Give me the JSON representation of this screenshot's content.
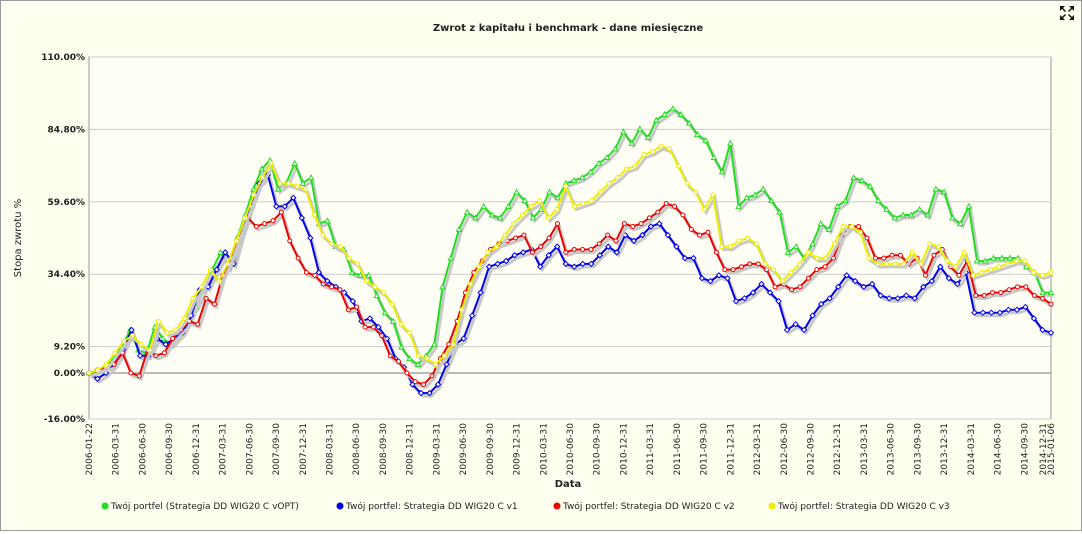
{
  "chart_data": {
    "type": "line",
    "title": "Zwrot z kapitału i benchmark - dane miesięczne",
    "xlabel": "Data",
    "ylabel": "Stopa zwrotu %",
    "y_ticks": [
      "110.00%",
      "84.80%",
      "59.60%",
      "34.40%",
      "9.20%",
      "0.00%",
      "-16.00%"
    ],
    "y_tick_values": [
      110,
      84.8,
      59.6,
      34.4,
      9.2,
      0,
      -16
    ],
    "ylim": [
      -16,
      110
    ],
    "x_ticks": [
      "2006-01-22",
      "2006-03-31",
      "2006-06-30",
      "2006-09-30",
      "2006-12-31",
      "2007-03-31",
      "2007-06-30",
      "2007-09-30",
      "2007-12-31",
      "2008-03-31",
      "2008-06-30",
      "2008-09-30",
      "2008-12-31",
      "2009-03-31",
      "2009-06-30",
      "2009-09-30",
      "2009-12-31",
      "2010-03-31",
      "2010-06-30",
      "2010-09-30",
      "2010-12-31",
      "2011-03-31",
      "2011-06-30",
      "2011-09-30",
      "2011-12-31",
      "2012-03-31",
      "2012-06-30",
      "2012-09-30",
      "2012-12-31",
      "2013-03-31",
      "2013-06-30",
      "2013-09-30",
      "2013-12-31",
      "2014-03-31",
      "2014-06-30",
      "2014-09-30",
      "2014-12-31",
      "2015-01-06"
    ],
    "grid": true,
    "legend_position": "bottom",
    "series": [
      {
        "name": "Twój portfel (Strategia DD WIG20 C vOPT)",
        "color": "#22dd22",
        "values": [
          0,
          1,
          2,
          5,
          9,
          15,
          8,
          7,
          16,
          12,
          10,
          13,
          20,
          23,
          29,
          36,
          42,
          37,
          47,
          55,
          64,
          71,
          74,
          64,
          66,
          73,
          66,
          68,
          52,
          53,
          44,
          43,
          35,
          34,
          34,
          27,
          21,
          18,
          9,
          5,
          3,
          6,
          10,
          30,
          40,
          50,
          56,
          54,
          58,
          55,
          54,
          58,
          63,
          60,
          54,
          57,
          63,
          61,
          66,
          67,
          68,
          70,
          73,
          75,
          78,
          84,
          80,
          85,
          82,
          88,
          90,
          92,
          90,
          87,
          83,
          81,
          75,
          70,
          80,
          58,
          61,
          62,
          64,
          60,
          56,
          42,
          44,
          40,
          45,
          52,
          50,
          58,
          60,
          68,
          67,
          65,
          60,
          57,
          54,
          55,
          55,
          57,
          55,
          64,
          63,
          54,
          52,
          58,
          39,
          39,
          40,
          40,
          40,
          40,
          37,
          35,
          28,
          28
        ]
      },
      {
        "name": "Twój portfel: Strategia DD WIG20 C v1",
        "color": "#0000ee",
        "values": [
          0,
          -2,
          0,
          3,
          8,
          15,
          6,
          6,
          12,
          10,
          12,
          14,
          20,
          29,
          30,
          36,
          42,
          38,
          49,
          58,
          66,
          69,
          58,
          58,
          61,
          54,
          47,
          35,
          32,
          30,
          28,
          25,
          18,
          19,
          16,
          12,
          5,
          2,
          -4,
          -7,
          -7,
          -4,
          3,
          10,
          12,
          20,
          28,
          37,
          38,
          39,
          41,
          42,
          43,
          37,
          41,
          44,
          38,
          37,
          38,
          38,
          41,
          44,
          42,
          48,
          46,
          48,
          51,
          52,
          48,
          44,
          40,
          40,
          33,
          32,
          34,
          33,
          25,
          26,
          28,
          31,
          28,
          25,
          15,
          17,
          15,
          20,
          24,
          26,
          30,
          34,
          32,
          30,
          31,
          27,
          26,
          26,
          27,
          26,
          30,
          32,
          37,
          33,
          31,
          35,
          21,
          21,
          21,
          21,
          22,
          22,
          23,
          19,
          15,
          14
        ]
      },
      {
        "name": "Twój portfel: Strategia DD WIG20 C v2",
        "color": "#ee0000",
        "values": [
          0,
          1,
          2,
          3,
          7,
          0,
          -1,
          8,
          6,
          7,
          12,
          15,
          18,
          17,
          26,
          24,
          34,
          40,
          47,
          54,
          51,
          52,
          53,
          56,
          46,
          40,
          35,
          34,
          31,
          30,
          29,
          22,
          23,
          16,
          16,
          13,
          6,
          4,
          0,
          -3,
          -4,
          -1,
          5,
          10,
          18,
          28,
          35,
          39,
          43,
          45,
          46,
          47,
          48,
          42,
          44,
          47,
          52,
          42,
          43,
          43,
          43,
          45,
          48,
          46,
          52,
          51,
          52,
          54,
          56,
          59,
          58,
          55,
          50,
          48,
          49,
          42,
          36,
          36,
          37,
          38,
          38,
          36,
          30,
          31,
          29,
          30,
          33,
          36,
          37,
          40,
          48,
          51,
          51,
          47,
          40,
          40,
          41,
          41,
          38,
          40,
          34,
          41,
          43,
          37,
          34,
          39,
          27,
          27,
          28,
          28,
          29,
          30,
          30,
          27,
          26,
          24
        ]
      },
      {
        "name": "Twój portfel: Strategia DD WIG20 C v3",
        "color": "#eeee00",
        "values": [
          0,
          1,
          3,
          7,
          11,
          13,
          10,
          8,
          18,
          14,
          15,
          19,
          26,
          30,
          36,
          32,
          38,
          46,
          54,
          62,
          68,
          73,
          66,
          66,
          65,
          64,
          55,
          48,
          45,
          44,
          40,
          38,
          32,
          30,
          28,
          24,
          17,
          14,
          6,
          5,
          3,
          6,
          10,
          22,
          31,
          37,
          42,
          44,
          48,
          52,
          55,
          58,
          60,
          54,
          57,
          65,
          58,
          59,
          60,
          63,
          66,
          68,
          71,
          72,
          76,
          77,
          79,
          78,
          72,
          66,
          63,
          57,
          62,
          44,
          44,
          46,
          47,
          45,
          38,
          36,
          32,
          35,
          38,
          42,
          40,
          40,
          45,
          51,
          51,
          49,
          40,
          38,
          38,
          38,
          38,
          42,
          38,
          45,
          44,
          39,
          37,
          42,
          34,
          35,
          36,
          37,
          38,
          39,
          39,
          35,
          34,
          35
        ]
      }
    ]
  }
}
